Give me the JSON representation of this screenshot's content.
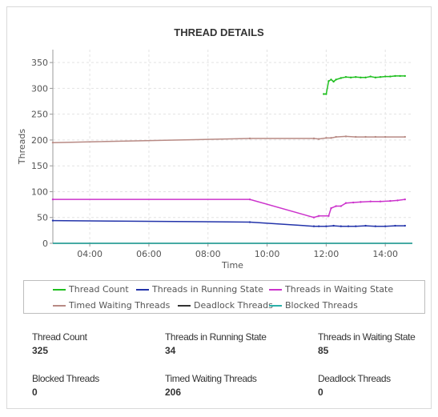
{
  "header": {
    "title": "THREAD DETAILS"
  },
  "legend": [
    {
      "label": "Thread Count",
      "color": "#1fbf1f"
    },
    {
      "label": "Threads in Running State",
      "color": "#2233aa"
    },
    {
      "label": "Threads in Waiting State",
      "color": "#cc33cc"
    },
    {
      "label": "Timed Waiting Threads",
      "color": "#b88a84"
    },
    {
      "label": "Deadlock Threads",
      "color": "#333333"
    },
    {
      "label": "Blocked Threads",
      "color": "#2ab0a8"
    }
  ],
  "stats": [
    {
      "label": "Thread Count",
      "value": "325"
    },
    {
      "label": "Threads in Running State",
      "value": "34"
    },
    {
      "label": "Threads in Waiting State",
      "value": "85"
    },
    {
      "label": "Blocked Threads",
      "value": "0"
    },
    {
      "label": "Timed Waiting Threads",
      "value": "206"
    },
    {
      "label": "Deadlock Threads",
      "value": "0"
    }
  ],
  "chart_data": {
    "type": "line",
    "title": "THREAD DETAILS",
    "xlabel": "Time",
    "ylabel": "Threads",
    "ylim": [
      0,
      375
    ],
    "xlim": [
      "02:45",
      "14:55"
    ],
    "yticks": [
      0,
      50,
      100,
      150,
      200,
      250,
      300,
      350
    ],
    "xticks": [
      "04:00",
      "06:00",
      "08:00",
      "10:00",
      "12:00",
      "14:00"
    ],
    "grid": true,
    "legend_position": "bottom",
    "series": [
      {
        "name": "Thread Count",
        "color": "#1fbf1f",
        "x": [
          "11:55",
          "12:00",
          "12:05",
          "12:10",
          "12:15",
          "12:20",
          "12:30",
          "12:40",
          "12:50",
          "13:00",
          "13:10",
          "13:20",
          "13:30",
          "13:40",
          "13:50",
          "14:00",
          "14:10",
          "14:20",
          "14:30",
          "14:40"
        ],
        "y": [
          289,
          289,
          314,
          317,
          313,
          317,
          320,
          322,
          321,
          322,
          321,
          321,
          323,
          321,
          322,
          323,
          323,
          324,
          324,
          324
        ]
      },
      {
        "name": "Threads in Running State",
        "color": "#2233aa",
        "x": [
          "02:45",
          "09:25",
          "11:35",
          "11:45",
          "12:00",
          "12:15",
          "12:30",
          "12:45",
          "13:00",
          "13:20",
          "13:40",
          "14:00",
          "14:20",
          "14:40"
        ],
        "y": [
          44,
          41,
          33,
          33,
          33,
          34,
          33,
          33,
          33,
          34,
          33,
          33,
          34,
          34
        ]
      },
      {
        "name": "Threads in Waiting State",
        "color": "#cc33cc",
        "x": [
          "02:45",
          "09:25",
          "11:35",
          "11:45",
          "12:05",
          "12:10",
          "12:20",
          "12:30",
          "12:40",
          "12:55",
          "13:10",
          "13:30",
          "13:50",
          "14:10",
          "14:25",
          "14:40"
        ],
        "y": [
          85,
          85,
          50,
          53,
          53,
          68,
          72,
          72,
          78,
          79,
          80,
          81,
          81,
          82,
          83,
          85
        ]
      },
      {
        "name": "Timed Waiting Threads",
        "color": "#b88a84",
        "x": [
          "02:45",
          "09:25",
          "11:35",
          "11:45",
          "12:00",
          "12:10",
          "12:20",
          "12:40",
          "13:00",
          "13:20",
          "13:40",
          "14:00",
          "14:40"
        ],
        "y": [
          195,
          203,
          203,
          202,
          204,
          204,
          206,
          207,
          206,
          206,
          206,
          206,
          206
        ]
      },
      {
        "name": "Deadlock Threads",
        "color": "#333333",
        "x": [
          "02:45",
          "14:55"
        ],
        "y": [
          0,
          0
        ]
      },
      {
        "name": "Blocked Threads",
        "color": "#2ab0a8",
        "x": [
          "02:45",
          "14:55"
        ],
        "y": [
          0,
          0
        ]
      }
    ]
  }
}
